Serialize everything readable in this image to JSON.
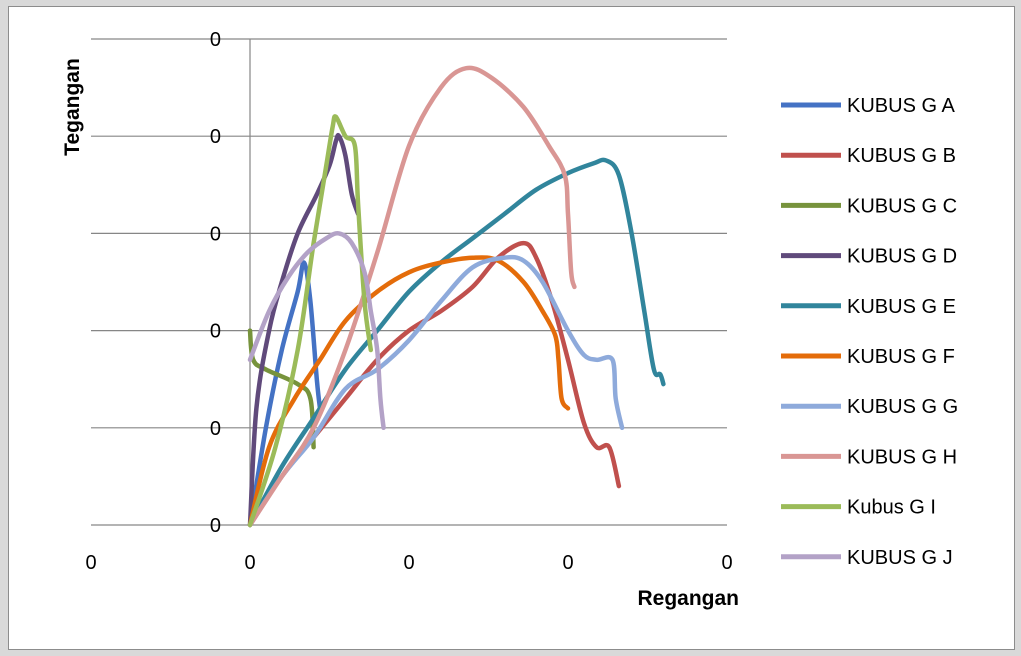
{
  "chart_data": {
    "type": "line",
    "title": "",
    "xlabel": "Regangan",
    "ylabel": "Tegangan",
    "x_tick_labels": [
      "0",
      "0",
      "0",
      "0",
      "0"
    ],
    "y_tick_labels": [
      "0",
      "0",
      "0",
      "0",
      "0",
      "0"
    ],
    "xlim": [
      -0.5,
      1.5
    ],
    "ylim": [
      0,
      5
    ],
    "grid": "horizontal",
    "legend_position": "right",
    "series": [
      {
        "name": "KUBUS G A",
        "color": "#4472c4",
        "points": [
          [
            0,
            0
          ],
          [
            0.05,
            1
          ],
          [
            0.1,
            1.8
          ],
          [
            0.15,
            2.4
          ],
          [
            0.17,
            2.7
          ],
          [
            0.19,
            2.3
          ],
          [
            0.21,
            1.5
          ],
          [
            0.22,
            1.2
          ]
        ]
      },
      {
        "name": "KUBUS G B",
        "color": "#c0504d",
        "points": [
          [
            0,
            0
          ],
          [
            0.1,
            0.5
          ],
          [
            0.2,
            0.9
          ],
          [
            0.3,
            1.3
          ],
          [
            0.4,
            1.7
          ],
          [
            0.5,
            2.0
          ],
          [
            0.6,
            2.2
          ],
          [
            0.7,
            2.45
          ],
          [
            0.78,
            2.75
          ],
          [
            0.86,
            2.9
          ],
          [
            0.9,
            2.75
          ],
          [
            0.95,
            2.3
          ],
          [
            1.0,
            1.7
          ],
          [
            1.05,
            1.05
          ],
          [
            1.09,
            0.8
          ],
          [
            1.13,
            0.8
          ],
          [
            1.16,
            0.4
          ]
        ]
      },
      {
        "name": "KUBUS G C",
        "color": "#77933c",
        "points": [
          [
            0,
            2.0
          ],
          [
            0.01,
            1.7
          ],
          [
            0.05,
            1.6
          ],
          [
            0.15,
            1.45
          ],
          [
            0.19,
            1.3
          ],
          [
            0.2,
            0.8
          ]
        ]
      },
      {
        "name": "KUBUS G D",
        "color": "#604a7b",
        "points": [
          [
            0,
            0
          ],
          [
            0.02,
            1.2
          ],
          [
            0.06,
            2.0
          ],
          [
            0.1,
            2.5
          ],
          [
            0.15,
            3.0
          ],
          [
            0.21,
            3.4
          ],
          [
            0.25,
            3.7
          ],
          [
            0.27,
            3.95
          ],
          [
            0.28,
            4.0
          ],
          [
            0.3,
            3.8
          ],
          [
            0.32,
            3.4
          ],
          [
            0.34,
            3.2
          ]
        ]
      },
      {
        "name": "KUBUS G E",
        "color": "#31859c",
        "points": [
          [
            0,
            0
          ],
          [
            0.1,
            0.6
          ],
          [
            0.2,
            1.1
          ],
          [
            0.3,
            1.6
          ],
          [
            0.4,
            2.0
          ],
          [
            0.5,
            2.4
          ],
          [
            0.6,
            2.7
          ],
          [
            0.7,
            2.95
          ],
          [
            0.8,
            3.2
          ],
          [
            0.9,
            3.45
          ],
          [
            1.0,
            3.62
          ],
          [
            1.08,
            3.72
          ],
          [
            1.12,
            3.75
          ],
          [
            1.16,
            3.6
          ],
          [
            1.2,
            3.0
          ],
          [
            1.24,
            2.2
          ],
          [
            1.27,
            1.6
          ],
          [
            1.29,
            1.55
          ],
          [
            1.3,
            1.45
          ]
        ]
      },
      {
        "name": "KUBUS G F",
        "color": "#e46c0a",
        "points": [
          [
            0,
            0
          ],
          [
            0.06,
            0.8
          ],
          [
            0.14,
            1.3
          ],
          [
            0.22,
            1.7
          ],
          [
            0.3,
            2.1
          ],
          [
            0.4,
            2.4
          ],
          [
            0.5,
            2.6
          ],
          [
            0.6,
            2.7
          ],
          [
            0.7,
            2.75
          ],
          [
            0.78,
            2.72
          ],
          [
            0.86,
            2.5
          ],
          [
            0.92,
            2.2
          ],
          [
            0.96,
            1.95
          ],
          [
            0.97,
            1.7
          ],
          [
            0.98,
            1.3
          ],
          [
            1.0,
            1.2
          ]
        ]
      },
      {
        "name": "KUBUS G G",
        "color": "#8eaadb",
        "points": [
          [
            0,
            0
          ],
          [
            0.1,
            0.5
          ],
          [
            0.2,
            0.9
          ],
          [
            0.3,
            1.4
          ],
          [
            0.4,
            1.6
          ],
          [
            0.5,
            1.9
          ],
          [
            0.6,
            2.3
          ],
          [
            0.7,
            2.65
          ],
          [
            0.8,
            2.75
          ],
          [
            0.86,
            2.72
          ],
          [
            0.92,
            2.5
          ],
          [
            1.0,
            2.0
          ],
          [
            1.05,
            1.75
          ],
          [
            1.09,
            1.7
          ],
          [
            1.14,
            1.7
          ],
          [
            1.15,
            1.3
          ],
          [
            1.17,
            1.0
          ]
        ]
      },
      {
        "name": "KUBUS G H",
        "color": "#d99694",
        "points": [
          [
            0,
            0
          ],
          [
            0.1,
            0.5
          ],
          [
            0.2,
            1.0
          ],
          [
            0.3,
            1.8
          ],
          [
            0.4,
            2.8
          ],
          [
            0.5,
            3.9
          ],
          [
            0.6,
            4.5
          ],
          [
            0.68,
            4.7
          ],
          [
            0.76,
            4.6
          ],
          [
            0.86,
            4.3
          ],
          [
            0.94,
            3.9
          ],
          [
            0.99,
            3.6
          ],
          [
            1.0,
            3.2
          ],
          [
            1.01,
            2.6
          ],
          [
            1.02,
            2.45
          ]
        ]
      },
      {
        "name": "Kubus G I",
        "color": "#9bbb59",
        "points": [
          [
            0,
            0
          ],
          [
            0.08,
            0.8
          ],
          [
            0.15,
            1.8
          ],
          [
            0.2,
            2.9
          ],
          [
            0.24,
            3.7
          ],
          [
            0.26,
            4.1
          ],
          [
            0.27,
            4.2
          ],
          [
            0.3,
            4.0
          ],
          [
            0.33,
            3.9
          ],
          [
            0.34,
            3.3
          ],
          [
            0.36,
            2.3
          ],
          [
            0.38,
            1.8
          ]
        ]
      },
      {
        "name": "KUBUS G J",
        "color": "#b3a2c7",
        "points": [
          [
            0,
            1.7
          ],
          [
            0.06,
            2.2
          ],
          [
            0.12,
            2.55
          ],
          [
            0.18,
            2.8
          ],
          [
            0.24,
            2.95
          ],
          [
            0.28,
            3.0
          ],
          [
            0.32,
            2.9
          ],
          [
            0.36,
            2.6
          ],
          [
            0.38,
            2.2
          ],
          [
            0.4,
            1.8
          ],
          [
            0.41,
            1.3
          ],
          [
            0.42,
            1.0
          ]
        ]
      }
    ]
  }
}
